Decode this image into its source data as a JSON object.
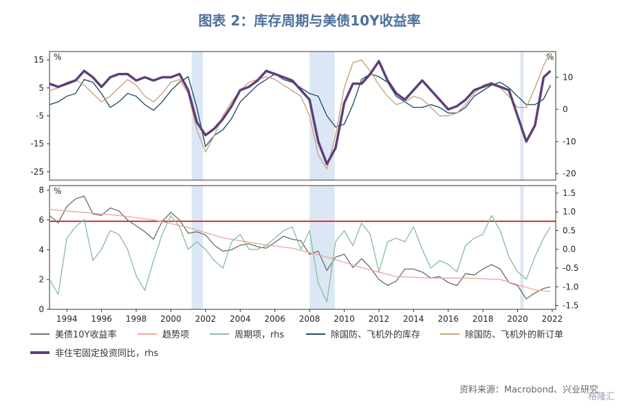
{
  "title": "图表 2：库存周期与美债10Y收益率",
  "source": "资料来源：Macrobond、兴业研究",
  "watermark": "格隆汇",
  "chart_data": [
    {
      "type": "line",
      "panel": "top",
      "ylabel_left": "%",
      "ylabel_right": "%",
      "ylim_left": [
        -28,
        18
      ],
      "ylim_right": [
        -22,
        18
      ],
      "yticks_left": [
        15,
        5,
        -5,
        -15,
        -25
      ],
      "yticks_right": [
        10,
        0,
        -10,
        -20
      ],
      "yticklabels_left": [
        "15",
        "5",
        "-5",
        "-15",
        "-25"
      ],
      "yticklabels_right": [
        "10",
        "0",
        "-10",
        "-20"
      ],
      "xlim": [
        1993,
        2022.2
      ],
      "shaded_periods": [
        [
          2001.2,
          2001.85
        ],
        [
          2008.0,
          2009.45
        ],
        [
          2020.15,
          2020.35
        ]
      ],
      "series": [
        {
          "name": "除国防、飞机外的库存",
          "color": "#1f4f6e",
          "axis": "left",
          "x": [
            1993,
            1993.5,
            1994,
            1994.5,
            1995,
            1995.5,
            1996,
            1996.5,
            1997,
            1997.5,
            1998,
            1998.5,
            1999,
            1999.5,
            2000,
            2000.5,
            2001,
            2001.5,
            2002,
            2002.5,
            2003,
            2003.5,
            2004,
            2004.5,
            2005,
            2005.5,
            2006,
            2006.5,
            2007,
            2007.5,
            2008,
            2008.5,
            2009,
            2009.5,
            2010,
            2010.5,
            2011,
            2011.5,
            2012,
            2012.5,
            2013,
            2013.5,
            2014,
            2014.5,
            2015,
            2015.5,
            2016,
            2016.5,
            2017,
            2017.5,
            2018,
            2018.5,
            2019,
            2019.5,
            2020,
            2020.5,
            2021,
            2021.5,
            2021.9
          ],
          "y": [
            -1,
            0,
            2,
            3,
            8,
            7,
            3,
            -2,
            0,
            3,
            2,
            -1,
            -3,
            0,
            4,
            7,
            9,
            -2,
            -16,
            -12,
            -10,
            -6,
            0,
            3,
            6,
            8,
            10,
            8,
            7,
            5,
            3,
            2,
            -5,
            -9,
            -8,
            -1,
            8,
            10,
            9,
            7,
            2,
            0,
            -2,
            -2,
            -1,
            -2,
            -4,
            -4,
            -2,
            2,
            4,
            6,
            7,
            5,
            2,
            -1,
            -1,
            1,
            6
          ]
        },
        {
          "name": "除国防、飞机外的新订单",
          "color": "#c8a27a",
          "axis": "left",
          "x": [
            1993,
            1993.5,
            1994,
            1994.5,
            1995,
            1995.5,
            1996,
            1996.5,
            1997,
            1997.5,
            1998,
            1998.5,
            1999,
            1999.5,
            2000,
            2000.5,
            2001,
            2001.5,
            2002,
            2002.5,
            2003,
            2003.5,
            2004,
            2004.5,
            2005,
            2005.5,
            2006,
            2006.5,
            2007,
            2007.5,
            2008,
            2008.5,
            2009,
            2009.5,
            2010,
            2010.5,
            2011,
            2011.5,
            2012,
            2012.5,
            2013,
            2013.5,
            2014,
            2014.5,
            2015,
            2015.5,
            2016,
            2016.5,
            2017,
            2017.5,
            2018,
            2018.5,
            2019,
            2019.5,
            2020,
            2020.5,
            2021,
            2021.5,
            2021.9
          ],
          "y": [
            4,
            5,
            7,
            8,
            6,
            3,
            0,
            2,
            5,
            8,
            6,
            2,
            0,
            3,
            7,
            8,
            3,
            -10,
            -18,
            -12,
            -5,
            0,
            4,
            7,
            8,
            9,
            8,
            6,
            4,
            2,
            -5,
            -19,
            -24,
            -12,
            5,
            14,
            15,
            11,
            6,
            2,
            -1,
            0,
            2,
            1,
            -2,
            -5,
            -5,
            -4,
            -1,
            3,
            6,
            7,
            5,
            2,
            -2,
            -2,
            5,
            13,
            18
          ]
        },
        {
          "name": "非住宅固定投资同比，rhs",
          "color": "#5c3f7a",
          "axis": "right",
          "x": [
            1993,
            1993.5,
            1994,
            1994.5,
            1995,
            1995.5,
            1996,
            1996.5,
            1997,
            1997.5,
            1998,
            1998.5,
            1999,
            1999.5,
            2000,
            2000.5,
            2001,
            2001.5,
            2002,
            2002.5,
            2003,
            2003.5,
            2004,
            2004.5,
            2005,
            2005.5,
            2006,
            2006.5,
            2007,
            2007.5,
            2008,
            2008.5,
            2009,
            2009.5,
            2010,
            2010.5,
            2011,
            2011.5,
            2012,
            2012.5,
            2013,
            2013.5,
            2014,
            2014.5,
            2015,
            2015.5,
            2016,
            2016.5,
            2017,
            2017.5,
            2018,
            2018.5,
            2019,
            2019.5,
            2020,
            2020.5,
            2021,
            2021.5,
            2021.9
          ],
          "y": [
            8,
            7,
            8,
            9,
            12,
            10,
            7,
            10,
            11,
            11,
            9,
            10,
            9,
            10,
            10,
            11,
            6,
            -4,
            -8,
            -6,
            -3,
            1,
            6,
            7,
            9,
            12,
            11,
            10,
            9,
            6,
            3,
            -10,
            -17,
            -12,
            2,
            8,
            8,
            11,
            15,
            9,
            5,
            3,
            6,
            9,
            6,
            3,
            0,
            1,
            3,
            6,
            7,
            8,
            7,
            6,
            -2,
            -10,
            -5,
            10,
            12
          ]
        }
      ]
    },
    {
      "type": "line",
      "panel": "bottom",
      "ylabel_left": "%",
      "ylim_left": [
        0,
        8.3
      ],
      "ylim_right": [
        -1.6,
        1.7
      ],
      "yticks_left": [
        0,
        2,
        4,
        6,
        8
      ],
      "yticks_right": [
        1.5,
        1.0,
        0.5,
        0.0,
        -0.5,
        -1.0,
        -1.5
      ],
      "yticklabels_left": [
        "0",
        "2",
        "4",
        "6",
        "8"
      ],
      "yticklabels_right": [
        "1.5",
        "1.0",
        "0.5",
        "0.0",
        "-0.5",
        "-1.0",
        "-1.5"
      ],
      "xlim": [
        1993,
        2022.2
      ],
      "xticks": [
        1994,
        1996,
        1998,
        2000,
        2002,
        2004,
        2006,
        2008,
        2010,
        2012,
        2014,
        2016,
        2018,
        2020,
        2022
      ],
      "xticklabels": [
        "1994",
        "1996",
        "1998",
        "2000",
        "2002",
        "2004",
        "2006",
        "2008",
        "2010",
        "2012",
        "2014",
        "2016",
        "2018",
        "2020",
        "2022"
      ],
      "shaded_periods": [
        [
          2001.2,
          2001.85
        ],
        [
          2008.0,
          2009.45
        ],
        [
          2020.15,
          2020.35
        ]
      ],
      "reference_line": {
        "axis": "right",
        "value": 0.75,
        "color": "#d9302c"
      },
      "series": [
        {
          "name": "美债10Y收益率",
          "color": "#707070",
          "axis": "left",
          "x": [
            1993,
            1993.5,
            1994,
            1994.5,
            1995,
            1995.5,
            1996,
            1996.5,
            1997,
            1997.5,
            1998,
            1998.5,
            1999,
            1999.5,
            2000,
            2000.5,
            2001,
            2001.5,
            2002,
            2002.5,
            2003,
            2003.5,
            2004,
            2004.5,
            2005,
            2005.5,
            2006,
            2006.5,
            2007,
            2007.5,
            2008,
            2008.5,
            2009,
            2009.5,
            2010,
            2010.5,
            2011,
            2011.5,
            2012,
            2012.5,
            2013,
            2013.5,
            2014,
            2014.5,
            2015,
            2015.5,
            2016,
            2016.5,
            2017,
            2017.5,
            2018,
            2018.5,
            2019,
            2019.5,
            2020,
            2020.5,
            2021,
            2021.5,
            2021.9
          ],
          "y": [
            6.3,
            5.8,
            6.9,
            7.4,
            7.6,
            6.4,
            6.3,
            6.8,
            6.6,
            6.0,
            5.6,
            5.2,
            4.7,
            5.9,
            6.5,
            6.0,
            5.1,
            5.2,
            5.0,
            4.3,
            3.9,
            4.0,
            4.3,
            4.4,
            4.2,
            4.1,
            4.5,
            4.9,
            4.7,
            4.6,
            3.7,
            3.9,
            2.6,
            3.5,
            3.7,
            2.8,
            3.4,
            2.8,
            2.0,
            1.6,
            1.9,
            2.7,
            2.7,
            2.5,
            2.1,
            2.2,
            1.8,
            1.6,
            2.4,
            2.3,
            2.7,
            3.0,
            2.7,
            1.8,
            1.6,
            0.7,
            1.1,
            1.4,
            1.5
          ]
        },
        {
          "name": "趋势项",
          "color": "#f0a8a0",
          "axis": "left",
          "x": [
            1993,
            1995,
            1997,
            1999,
            2001,
            2003,
            2005,
            2007,
            2009,
            2011,
            2013,
            2015,
            2017,
            2019,
            2021,
            2021.9
          ],
          "y": [
            6.7,
            6.5,
            6.3,
            6.0,
            5.5,
            4.8,
            4.4,
            4.1,
            3.5,
            2.8,
            2.2,
            2.1,
            2.1,
            2.0,
            1.3,
            1.2
          ]
        },
        {
          "name": "周期项，rhs",
          "color": "#8bbf9f",
          "axis": "right",
          "x": [
            1993,
            1993.5,
            1994,
            1994.5,
            1995,
            1995.5,
            1996,
            1996.5,
            1997,
            1997.5,
            1998,
            1998.5,
            1999,
            1999.5,
            2000,
            2000.5,
            2001,
            2001.5,
            2002,
            2002.5,
            2003,
            2003.5,
            2004,
            2004.5,
            2005,
            2005.5,
            2006,
            2006.5,
            2007,
            2007.5,
            2008,
            2008.5,
            2009,
            2009.5,
            2010,
            2010.5,
            2011,
            2011.5,
            2012,
            2012.5,
            2013,
            2013.5,
            2014,
            2014.5,
            2015,
            2015.5,
            2016,
            2016.5,
            2017,
            2017.5,
            2018,
            2018.5,
            2019,
            2019.5,
            2020,
            2020.5,
            2021,
            2021.5,
            2021.9
          ],
          "y": [
            -0.8,
            -1.2,
            0.3,
            0.6,
            0.8,
            -0.3,
            0.0,
            0.5,
            0.4,
            0.0,
            -0.7,
            -1.1,
            -0.3,
            0.4,
            0.9,
            0.6,
            0.0,
            0.2,
            0.0,
            -0.3,
            -0.5,
            0.2,
            0.4,
            0.0,
            0.0,
            0.1,
            0.3,
            0.5,
            0.6,
            0.0,
            0.5,
            -0.9,
            -1.4,
            0.2,
            0.5,
            0.1,
            0.7,
            0.4,
            -0.6,
            0.2,
            0.3,
            0.2,
            0.6,
            0.0,
            -0.5,
            -0.3,
            -0.4,
            -0.6,
            0.1,
            0.3,
            0.4,
            0.9,
            0.5,
            -0.2,
            -0.6,
            -0.8,
            -0.2,
            0.3,
            0.6
          ]
        }
      ]
    }
  ],
  "legend": [
    {
      "label": "美债10Y收益率",
      "color": "#707070"
    },
    {
      "label": "趋势项",
      "color": "#f0a8a0"
    },
    {
      "label": "周期项，rhs",
      "color": "#8bbf9f"
    },
    {
      "label": "除国防、飞机外的库存",
      "color": "#1f4f6e"
    },
    {
      "label": "除国防、飞机外的新订单",
      "color": "#c8a27a"
    },
    {
      "label": "非住宅固定投资同比，rhs",
      "color": "#5c3f7a"
    }
  ]
}
